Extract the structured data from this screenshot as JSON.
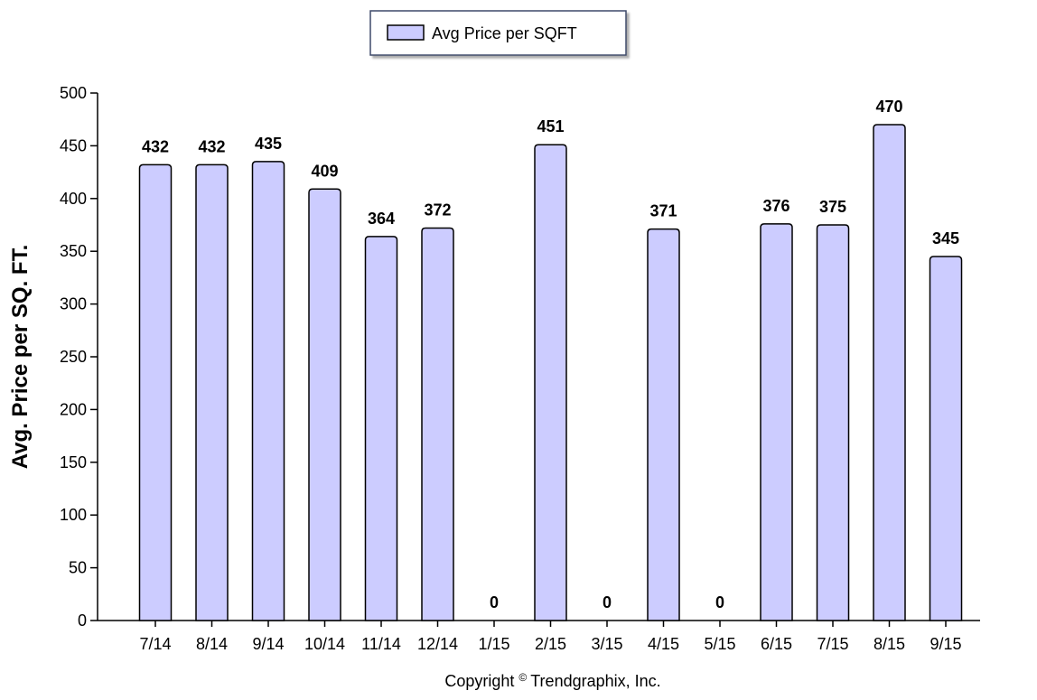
{
  "chart_data": {
    "type": "bar",
    "categories": [
      "7/14",
      "8/14",
      "9/14",
      "10/14",
      "11/14",
      "12/14",
      "1/15",
      "2/15",
      "3/15",
      "4/15",
      "5/15",
      "6/15",
      "7/15",
      "8/15",
      "9/15"
    ],
    "series": [
      {
        "name": "Avg Price per SQFT",
        "values": [
          432,
          432,
          435,
          409,
          364,
          372,
          0,
          451,
          0,
          371,
          0,
          376,
          375,
          470,
          345
        ],
        "data_labels": [
          "432",
          "432",
          "435",
          "409",
          "364",
          "372",
          "0",
          "451",
          "0",
          "371",
          "0",
          "376",
          "375",
          "470",
          "345"
        ],
        "color": "#ccccff"
      }
    ],
    "title": "",
    "xlabel": "",
    "ylabel": "Avg. Price per SQ. FT.",
    "ylim": [
      0,
      500
    ],
    "yticks": [
      "0",
      "50",
      "100",
      "150",
      "200",
      "250",
      "300",
      "350",
      "400",
      "450",
      "500"
    ],
    "grid": false,
    "legend_position": "top-center",
    "bar_outline_color": "#000000"
  },
  "footer": {
    "copyright_prefix": "Copyright",
    "copyright_symbol": "©",
    "copyright_owner": "Trendgraphix, Inc."
  }
}
